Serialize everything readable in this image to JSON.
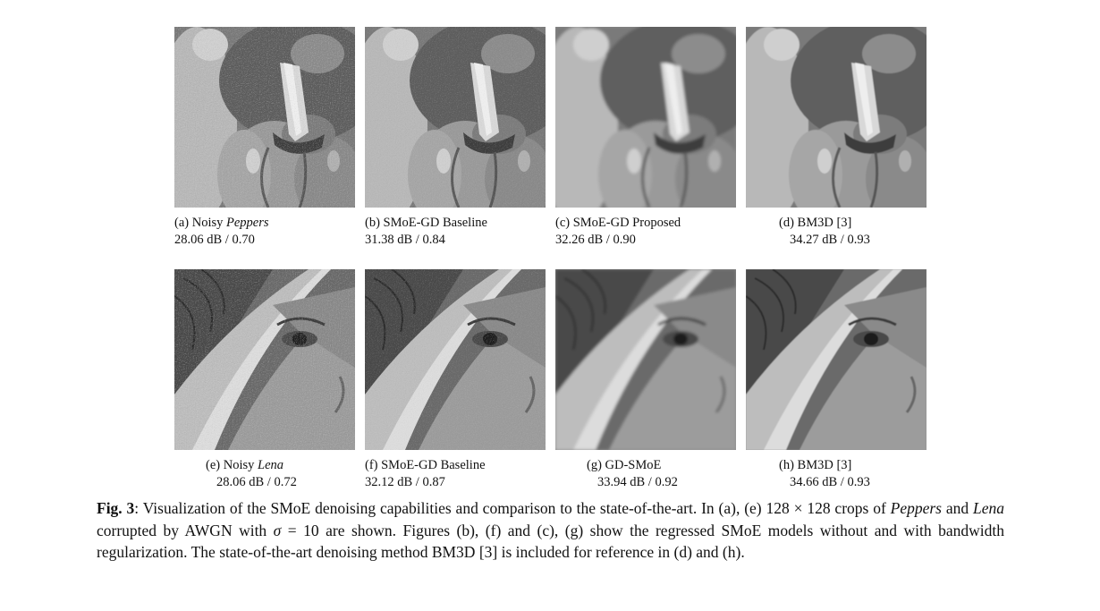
{
  "panels": [
    {
      "id": "a",
      "label_pre": "(a) Noisy ",
      "label_em": "Peppers",
      "label_post": "",
      "metric": "28.06 dB / 0.70"
    },
    {
      "id": "b",
      "label_pre": "(b) SMoE-GD Baseline",
      "label_em": "",
      "label_post": "",
      "metric": "31.38 dB / 0.84"
    },
    {
      "id": "c",
      "label_pre": "(c) SMoE-GD Proposed",
      "label_em": "",
      "label_post": "",
      "metric": "32.26 dB / 0.90"
    },
    {
      "id": "d",
      "label_pre": "(d) BM3D [3]",
      "label_em": "",
      "label_post": "",
      "metric": "34.27 dB / 0.93"
    },
    {
      "id": "e",
      "label_pre": "(e) Noisy ",
      "label_em": "Lena",
      "label_post": "",
      "metric": "28.06 dB / 0.72"
    },
    {
      "id": "f",
      "label_pre": "(f) SMoE-GD Baseline",
      "label_em": "",
      "label_post": "",
      "metric": "32.12 dB / 0.87"
    },
    {
      "id": "g",
      "label_pre": "(g) GD-SMoE",
      "label_em": "",
      "label_post": "",
      "metric": "33.94 dB / 0.92"
    },
    {
      "id": "h",
      "label_pre": "(h) BM3D [3]",
      "label_em": "",
      "label_post": "",
      "metric": "34.66 dB / 0.93"
    }
  ],
  "caption": {
    "fig_label": "Fig. 3",
    "t1": ": Visualization of the SMoE denoising capabilities and comparison to the state-of-the-art. In (a), (e) 128 × 128 crops of ",
    "em1": "Peppers",
    "t2": " and ",
    "em2": "Lena",
    "t3": " corrupted by AWGN with ",
    "sigma": "σ",
    "t4": " = 10 are shown. Figures (b), (f) and (c), (g) show the regressed SMoE models without and with bandwidth regularization. The state-of-the-art denoising method BM3D [3] is included for reference in (d) and (h)."
  }
}
